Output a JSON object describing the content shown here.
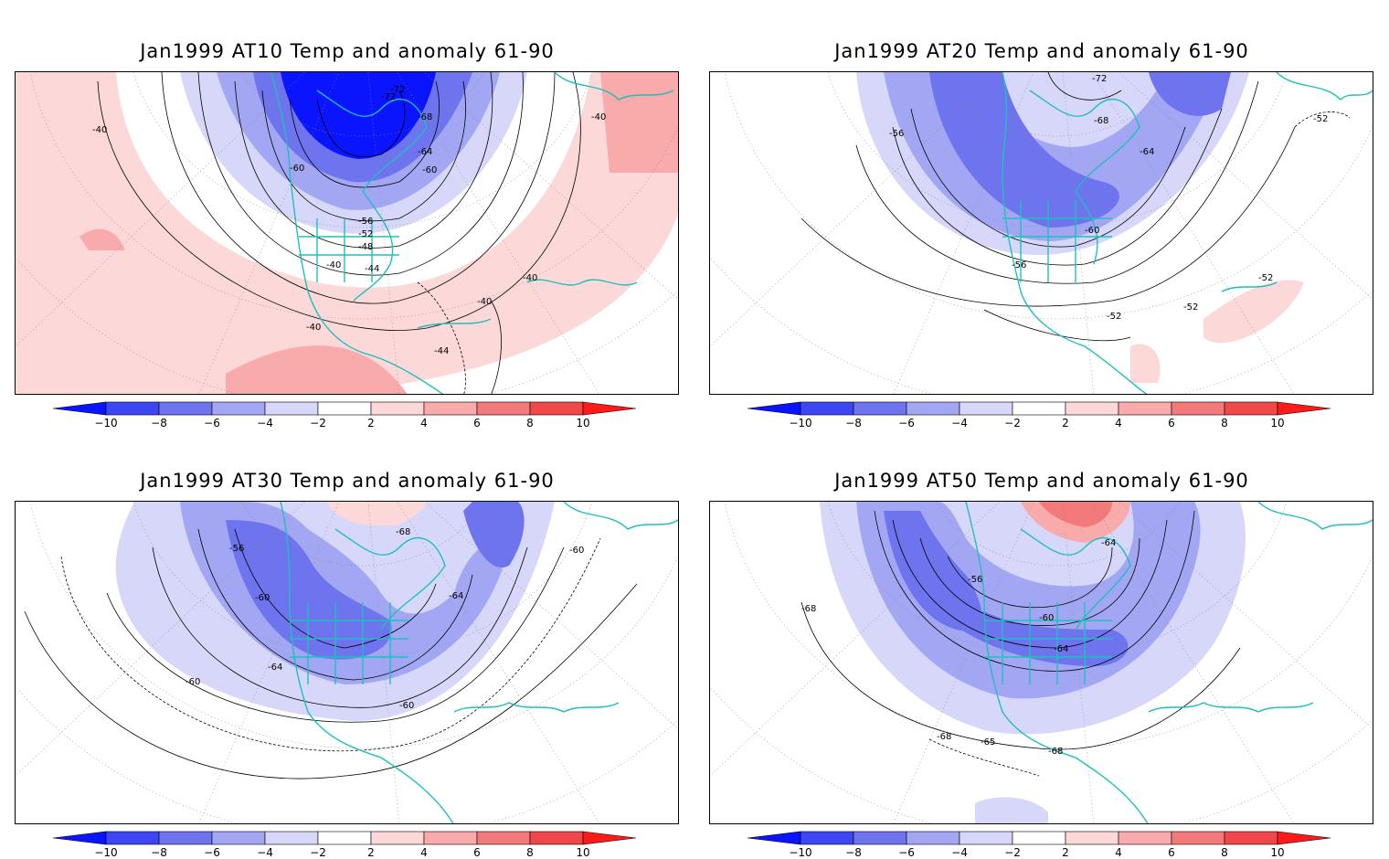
{
  "panels": [
    {
      "title": "Jan1999 AT10 Temp and anomaly 61-90",
      "contour_labels": [
        "-72",
        "-72",
        "-68",
        "-64",
        "-60",
        "-60",
        "-56",
        "-52",
        "-48",
        "-44",
        "-40",
        "-40",
        "-40",
        "-40",
        "-40",
        "-40",
        "-44"
      ]
    },
    {
      "title": "Jan1999 AT20 Temp and anomaly 61-90",
      "contour_labels": [
        "-72",
        "-68",
        "-64",
        "-56",
        "-60",
        "-56",
        "-52",
        "-52",
        "-52",
        "-52"
      ]
    },
    {
      "title": "Jan1999 AT30 Temp and anomaly 61-90",
      "contour_labels": [
        "-68",
        "-56",
        "-60",
        "-64",
        "-60",
        "-64",
        "-60",
        "-60"
      ]
    },
    {
      "title": "Jan1999 AT50 Temp and anomaly 61-90",
      "contour_labels": [
        "-64",
        "-56",
        "-60",
        "-64",
        "-68",
        "-68",
        "-65",
        "-68"
      ]
    }
  ],
  "colorbar": {
    "ticks": [
      "−10",
      "−8",
      "−6",
      "−4",
      "−2",
      "2",
      "4",
      "6",
      "8",
      "10"
    ],
    "colors": [
      "#0a14ff",
      "#3c46f2",
      "#6e74ee",
      "#a3a7f3",
      "#d6d7f9",
      "#ffffff",
      "#fcd8d8",
      "#f9aaaa",
      "#f37a7a",
      "#f04848",
      "#ff1a1a"
    ]
  },
  "colors": {
    "coast": "#1fbfbf",
    "cold": "#3c46f2",
    "warm": "#f37a7a"
  }
}
